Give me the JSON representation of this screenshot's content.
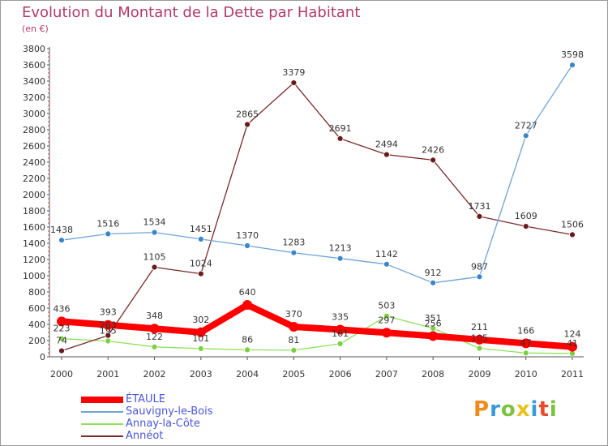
{
  "header": {
    "title": "Evolution du Montant de la Dette par Habitant",
    "subtitle": "(en €)"
  },
  "logo": {
    "text": "Proxiti",
    "colors": [
      "#f08a1c",
      "#3a9ad9",
      "#7cc242",
      "#e8c21a",
      "#3a9ad9",
      "#e84a2a",
      "#7cc242"
    ]
  },
  "chart_data": {
    "type": "line",
    "title": "Evolution du Montant de la Dette par Habitant",
    "ylabel": "(en €)",
    "xlabel": "",
    "x": [
      "2000",
      "2001",
      "2002",
      "2003",
      "2004",
      "2005",
      "2006",
      "2007",
      "2008",
      "2009",
      "2010",
      "2011"
    ],
    "ylim": [
      0,
      3800
    ],
    "yticks": [
      0,
      200,
      400,
      600,
      800,
      1000,
      1200,
      1400,
      1600,
      1800,
      2000,
      2200,
      2400,
      2600,
      2800,
      3000,
      3200,
      3400,
      3600,
      3800
    ],
    "grid": false,
    "legend_position": "bottom-left",
    "series": [
      {
        "name": "ÉTAULE",
        "color": "#ff0000",
        "values": [
          436,
          393,
          348,
          302,
          640,
          370,
          335,
          297,
          256,
          211,
          166,
          124
        ]
      },
      {
        "name": "Sauvigny-le-Bois",
        "color": "#6fa3d6",
        "values": [
          1438,
          1516,
          1534,
          1451,
          1370,
          1283,
          1213,
          1142,
          912,
          987,
          2727,
          3598
        ]
      },
      {
        "name": "Annay-la-Côte",
        "color": "#8ee05a",
        "values": [
          223,
          195,
          122,
          101,
          86,
          81,
          161,
          503,
          351,
          105,
          47,
          41
        ]
      },
      {
        "name": "Annéot",
        "color": "#7a2a2a",
        "values": [
          74,
          263,
          1105,
          1024,
          2865,
          3379,
          2691,
          2494,
          2426,
          1731,
          1609,
          1506
        ]
      }
    ]
  }
}
